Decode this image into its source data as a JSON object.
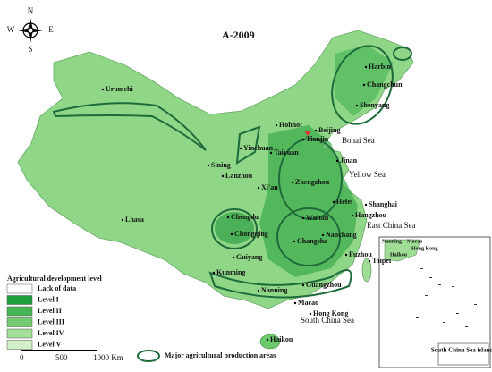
{
  "title": "A-2009",
  "compass": {
    "north": "N",
    "south": "S",
    "east": "E",
    "west": "W"
  },
  "cities": [
    "Urumchi",
    "Harbin",
    "Changchun",
    "Shenyang",
    "Hohhot",
    "Beijing",
    "Tianjin",
    "Yinchuan",
    "Taiyuan",
    "Jinan",
    "Sining",
    "Lanzhou",
    "Zhengzhou",
    "Xi'an",
    "Lhasa",
    "Hefei",
    "Shanghai",
    "Hangzhou",
    "Chengdu",
    "Chongqing",
    "Wuhan",
    "Nanchang",
    "Changsha",
    "Fuzhou",
    "Taipei",
    "Guiyang",
    "Kunming",
    "Nanning",
    "Guangzhou",
    "Macao",
    "Hong Kong",
    "Haikou"
  ],
  "seas": [
    "Bohai Sea",
    "Yellow Sea",
    "East China Sea",
    "South China Sea"
  ],
  "legend": {
    "title": "Agricultural development level",
    "items": [
      {
        "label": "Lack of data",
        "color": "#ffffff"
      },
      {
        "label": "Level I",
        "color": "#1f9e3c"
      },
      {
        "label": "Level II",
        "color": "#45b653"
      },
      {
        "label": "Level III",
        "color": "#74cc72"
      },
      {
        "label": "Level IV",
        "color": "#a3df98"
      },
      {
        "label": "Level V",
        "color": "#d2f0c8"
      }
    ]
  },
  "scale": {
    "labels": [
      "0",
      "500",
      "1000 Km"
    ]
  },
  "production_areas_label": "Major agricultural production areas",
  "inset": {
    "title": "South China Sea islands",
    "labels": [
      "Nanning",
      "Macao",
      "Hong Kong",
      "Haikou"
    ]
  }
}
